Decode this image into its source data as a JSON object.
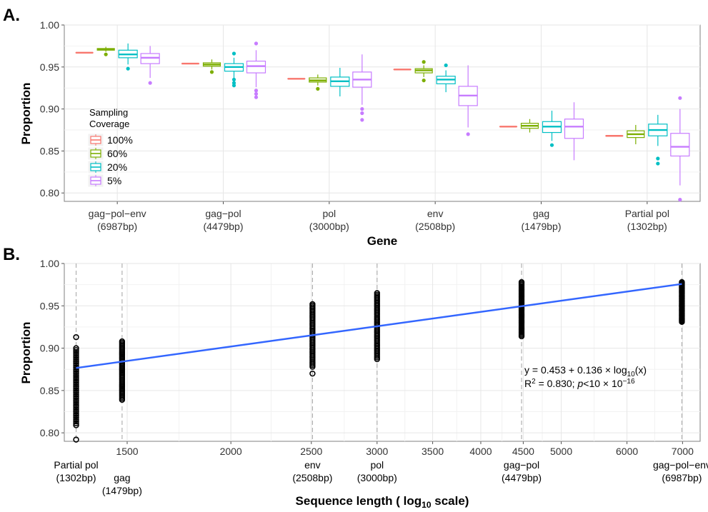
{
  "chart_data": [
    {
      "panel_label": "A.",
      "type": "box",
      "xlabel": "Gene",
      "ylabel": "Proportion",
      "ylim": [
        0.79,
        1.0
      ],
      "yticks": [
        "0.80",
        "0.85",
        "0.90",
        "0.95",
        "1.00"
      ],
      "categories": [
        {
          "name": "gag−pol−env",
          "bp": "(6987bp)"
        },
        {
          "name": "gag−pol",
          "bp": "(4479bp)"
        },
        {
          "name": "pol",
          "bp": "(3000bp)"
        },
        {
          "name": "env",
          "bp": "(2508bp)"
        },
        {
          "name": "gag",
          "bp": "(1479bp)"
        },
        {
          "name": "Partial pol",
          "bp": "(1302bp)"
        }
      ],
      "legend": {
        "title_lines": [
          "Sampling",
          "Coverage"
        ],
        "placement": "left-inside"
      },
      "series": [
        {
          "name": "100%",
          "color": "#F8766D",
          "boxes": [
            {
              "min": 0.967,
              "q1": 0.967,
              "median": 0.967,
              "q3": 0.967,
              "max": 0.967,
              "outliers": []
            },
            {
              "min": 0.954,
              "q1": 0.954,
              "median": 0.954,
              "q3": 0.954,
              "max": 0.954,
              "outliers": []
            },
            {
              "min": 0.936,
              "q1": 0.936,
              "median": 0.936,
              "q3": 0.936,
              "max": 0.936,
              "outliers": []
            },
            {
              "min": 0.947,
              "q1": 0.947,
              "median": 0.947,
              "q3": 0.947,
              "max": 0.947,
              "outliers": []
            },
            {
              "min": 0.879,
              "q1": 0.879,
              "median": 0.879,
              "q3": 0.879,
              "max": 0.879,
              "outliers": []
            },
            {
              "min": 0.868,
              "q1": 0.868,
              "median": 0.868,
              "q3": 0.868,
              "max": 0.868,
              "outliers": []
            }
          ]
        },
        {
          "name": "60%",
          "color": "#7CAE00",
          "boxes": [
            {
              "min": 0.968,
              "q1": 0.97,
              "median": 0.971,
              "q3": 0.972,
              "max": 0.974,
              "outliers": [
                0.965
              ]
            },
            {
              "min": 0.947,
              "q1": 0.951,
              "median": 0.953,
              "q3": 0.955,
              "max": 0.959,
              "outliers": [
                0.944
              ]
            },
            {
              "min": 0.928,
              "q1": 0.932,
              "median": 0.934,
              "q3": 0.937,
              "max": 0.941,
              "outliers": [
                0.924
              ]
            },
            {
              "min": 0.938,
              "q1": 0.943,
              "median": 0.946,
              "q3": 0.948,
              "max": 0.952,
              "outliers": [
                0.934,
                0.956
              ]
            },
            {
              "min": 0.872,
              "q1": 0.877,
              "median": 0.88,
              "q3": 0.883,
              "max": 0.888,
              "outliers": []
            },
            {
              "min": 0.858,
              "q1": 0.866,
              "median": 0.87,
              "q3": 0.874,
              "max": 0.881,
              "outliers": []
            }
          ]
        },
        {
          "name": "20%",
          "color": "#00BFC4",
          "boxes": [
            {
              "min": 0.953,
              "q1": 0.961,
              "median": 0.965,
              "q3": 0.97,
              "max": 0.978,
              "outliers": [
                0.948
              ]
            },
            {
              "min": 0.937,
              "q1": 0.945,
              "median": 0.95,
              "q3": 0.954,
              "max": 0.961,
              "outliers": [
                0.928,
                0.931,
                0.935,
                0.966
              ]
            },
            {
              "min": 0.915,
              "q1": 0.927,
              "median": 0.933,
              "q3": 0.938,
              "max": 0.949,
              "outliers": []
            },
            {
              "min": 0.92,
              "q1": 0.93,
              "median": 0.935,
              "q3": 0.939,
              "max": 0.946,
              "outliers": [
                0.952
              ]
            },
            {
              "min": 0.862,
              "q1": 0.872,
              "median": 0.879,
              "q3": 0.885,
              "max": 0.898,
              "outliers": [
                0.857
              ]
            },
            {
              "min": 0.856,
              "q1": 0.868,
              "median": 0.875,
              "q3": 0.882,
              "max": 0.893,
              "outliers": [
                0.835,
                0.841
              ]
            }
          ]
        },
        {
          "name": "5%",
          "color": "#C77CFF",
          "boxes": [
            {
              "min": 0.937,
              "q1": 0.954,
              "median": 0.961,
              "q3": 0.966,
              "max": 0.975,
              "outliers": [
                0.931
              ]
            },
            {
              "min": 0.926,
              "q1": 0.943,
              "median": 0.951,
              "q3": 0.957,
              "max": 0.97,
              "outliers": [
                0.914,
                0.918,
                0.922,
                0.978
              ]
            },
            {
              "min": 0.905,
              "q1": 0.926,
              "median": 0.935,
              "q3": 0.944,
              "max": 0.965,
              "outliers": [
                0.887,
                0.895,
                0.9
              ]
            },
            {
              "min": 0.878,
              "q1": 0.904,
              "median": 0.916,
              "q3": 0.927,
              "max": 0.952,
              "outliers": [
                0.87
              ]
            },
            {
              "min": 0.839,
              "q1": 0.865,
              "median": 0.879,
              "q3": 0.888,
              "max": 0.908,
              "outliers": []
            },
            {
              "min": 0.809,
              "q1": 0.844,
              "median": 0.855,
              "q3": 0.871,
              "max": 0.9,
              "outliers": [
                0.792,
                0.913
              ]
            }
          ]
        }
      ]
    },
    {
      "panel_label": "B.",
      "type": "scatter",
      "xlabel": "Sequence length ( log10 scale)",
      "ylabel": "Proportion",
      "x_scale": "log10",
      "xlim": [
        1260,
        7350
      ],
      "ylim": [
        0.79,
        1.0
      ],
      "yticks": [
        "0.80",
        "0.85",
        "0.90",
        "0.95",
        "1.00"
      ],
      "xticks": [
        1500,
        2000,
        2500,
        3000,
        3500,
        4000,
        4500,
        5000,
        6000,
        7000
      ],
      "xtick_labels": [
        "1500",
        "2000",
        "2500",
        "3000",
        "3500",
        "4000",
        "4500",
        "5000",
        "6000",
        "7000"
      ],
      "markers": [
        {
          "x": 1302,
          "name": "Partial pol",
          "bp": "(1302bp)"
        },
        {
          "x": 1479,
          "name": "gag",
          "bp": "(1479bp)"
        },
        {
          "x": 2508,
          "name": "env",
          "bp": "(2508bp)"
        },
        {
          "x": 3000,
          "name": "pol",
          "bp": "(3000bp)"
        },
        {
          "x": 4479,
          "name": "gag−pol",
          "bp": "(4479bp)"
        },
        {
          "x": 6987,
          "name": "gag−pol−env",
          "bp": "(6987bp)"
        }
      ],
      "point_ranges": [
        {
          "x": 1302,
          "y_min": 0.809,
          "y_max": 0.9,
          "outliers": [
            0.792,
            0.913
          ]
        },
        {
          "x": 1479,
          "y_min": 0.839,
          "y_max": 0.908,
          "outliers": []
        },
        {
          "x": 2508,
          "y_min": 0.878,
          "y_max": 0.952,
          "outliers": [
            0.87
          ]
        },
        {
          "x": 3000,
          "y_min": 0.887,
          "y_max": 0.965,
          "outliers": []
        },
        {
          "x": 4479,
          "y_min": 0.914,
          "y_max": 0.978,
          "outliers": []
        },
        {
          "x": 6987,
          "y_min": 0.931,
          "y_max": 0.978,
          "outliers": []
        }
      ],
      "fit": {
        "intercept": 0.453,
        "slope": 0.136,
        "color": "#3366FF"
      },
      "annotation": {
        "eq_prefix": "y = 0.453 + 0.136 × log",
        "eq_sub": "10",
        "eq_suffix": "(x)",
        "r2_prefix": "R",
        "r2_sup": "2",
        "r2_value": " = 0.830; ",
        "p_text": "p",
        "p_rest": "<10 × 10",
        "p_exp": "−16"
      }
    }
  ]
}
